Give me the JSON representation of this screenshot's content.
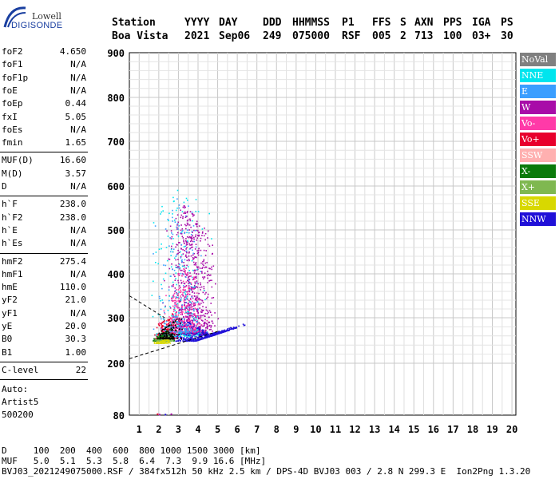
{
  "logo": {
    "line1": "Lowell",
    "line2": "DIGISONDE"
  },
  "header": {
    "station_label": "Station",
    "station_value": "Boa Vista",
    "yyyy_label": "YYYY",
    "yyyy_value": "2021",
    "day_label": "DAY",
    "day_value": "Sep06",
    "ddd_label": "DDD",
    "ddd_value": "249",
    "time_label": "HHMMSS",
    "time_value": "075000",
    "p1_label": "P1",
    "p1_value": "RSF",
    "ffs_label": "FFS",
    "ffs_value": "005",
    "s_label": "S",
    "s_value": "2",
    "axn_label": "AXN",
    "axn_value": "713",
    "pps_label": "PPS",
    "pps_value": "100",
    "iga_label": "IGA",
    "iga_value": "03+",
    "ps_label": "PS",
    "ps_value": "30"
  },
  "params_group1": [
    {
      "k": "foF2",
      "v": "4.650"
    },
    {
      "k": "foF1",
      "v": "N/A"
    },
    {
      "k": "foF1p",
      "v": "N/A"
    },
    {
      "k": "foE",
      "v": "N/A"
    },
    {
      "k": "foEp",
      "v": "0.44"
    },
    {
      "k": "fxI",
      "v": "5.05"
    },
    {
      "k": "foEs",
      "v": "N/A"
    },
    {
      "k": "fmin",
      "v": "1.65"
    }
  ],
  "params_group2": [
    {
      "k": "MUF(D)",
      "v": "16.60"
    },
    {
      "k": "M(D)",
      "v": "3.57"
    },
    {
      "k": "D",
      "v": "N/A"
    }
  ],
  "params_group3": [
    {
      "k": "h`F",
      "v": "238.0"
    },
    {
      "k": "h`F2",
      "v": "238.0"
    },
    {
      "k": "h`E",
      "v": "N/A"
    },
    {
      "k": "h`Es",
      "v": "N/A"
    }
  ],
  "params_group4": [
    {
      "k": "hmF2",
      "v": "275.4"
    },
    {
      "k": "hmF1",
      "v": "N/A"
    },
    {
      "k": "hmE",
      "v": "110.0"
    },
    {
      "k": "yF2",
      "v": "21.0"
    },
    {
      "k": "yF1",
      "v": "N/A"
    },
    {
      "k": "yE",
      "v": "20.0"
    },
    {
      "k": "B0",
      "v": "30.3"
    },
    {
      "k": "B1",
      "v": "1.00"
    }
  ],
  "clevel": {
    "k": "C-level",
    "v": "22"
  },
  "footer_left": {
    "auto": "Auto:",
    "artist": "Artist5",
    "code": "500200"
  },
  "legend": [
    {
      "label": "NoVal",
      "color": "#808080"
    },
    {
      "label": "NNE",
      "color": "#00e5ee"
    },
    {
      "label": "E",
      "color": "#3a9eff"
    },
    {
      "label": "W",
      "color": "#a80ca8"
    },
    {
      "label": "Vo-",
      "color": "#ff3aa8"
    },
    {
      "label": "Vo+",
      "color": "#e8002c"
    },
    {
      "label": "SSW",
      "color": "#ffb0b0"
    },
    {
      "label": "X-",
      "color": "#0b7a0b"
    },
    {
      "label": "X+",
      "color": "#7fb850"
    },
    {
      "label": "SSE",
      "color": "#d8d800"
    },
    {
      "label": "NNW",
      "color": "#2010d8"
    }
  ],
  "bottom": {
    "line1": "D     100  200  400  600  800 1000 1500 3000 [km]",
    "line2": "MUF   5.0  5.1  5.3  5.8  6.4  7.3  9.9 16.6 [MHz]",
    "line3": "BVJ03_2021249075000.RSF / 384fx512h 50 kHz 2.5 km / DPS-4D BVJ03 003 / 2.8 N 299.3 E  Ion2Png 1.3.20"
  },
  "chart_data": {
    "type": "scatter",
    "x_ticks": [
      1,
      2,
      3,
      4,
      5,
      6,
      7,
      8,
      9,
      10,
      11,
      12,
      13,
      14,
      15,
      16,
      17,
      18,
      19,
      20
    ],
    "y_ticks": [
      80,
      200,
      300,
      400,
      500,
      600,
      700,
      800,
      900
    ],
    "xlim": [
      0.5,
      20.2
    ],
    "ylim": [
      80,
      900
    ],
    "grid": true,
    "y_scale": "piecewise",
    "legend_placement": "right",
    "trace_lines": [
      {
        "points": [
          [
            0.5,
            210
          ],
          [
            5.0,
            270
          ]
        ]
      },
      {
        "points": [
          [
            0.5,
            350
          ],
          [
            2.3,
            300
          ]
        ]
      }
    ],
    "clusters": [
      {
        "color": "#a80ca8",
        "x_center": 3.6,
        "x_spread": 1.6,
        "y_min": 265,
        "y_max": 560,
        "count": 900
      },
      {
        "color": "#2010d8",
        "x_center": 4.2,
        "x_spread": 2.6,
        "y_min": 250,
        "y_max": 300,
        "count": 550
      },
      {
        "color": "#e8002c",
        "x_center": 2.4,
        "x_spread": 0.8,
        "y_min": 255,
        "y_max": 330,
        "count": 260
      },
      {
        "color": "#ff3aa8",
        "x_center": 3.2,
        "x_spread": 1.3,
        "y_min": 270,
        "y_max": 420,
        "count": 260
      },
      {
        "color": "#00e5ee",
        "x_center": 3.0,
        "x_spread": 2.0,
        "y_min": 260,
        "y_max": 620,
        "count": 180
      },
      {
        "color": "#3a9eff",
        "x_center": 3.0,
        "x_spread": 1.6,
        "y_min": 270,
        "y_max": 600,
        "count": 160
      },
      {
        "color": "#0b7a0b",
        "x_center": 2.2,
        "x_spread": 0.7,
        "y_min": 250,
        "y_max": 300,
        "count": 120
      },
      {
        "color": "#7fb850",
        "x_center": 2.3,
        "x_spread": 0.7,
        "y_min": 250,
        "y_max": 290,
        "count": 90
      },
      {
        "color": "#d8d800",
        "x_center": 2.2,
        "x_spread": 0.6,
        "y_min": 245,
        "y_max": 280,
        "count": 60
      },
      {
        "color": "#000000",
        "x_center": 2.5,
        "x_spread": 0.8,
        "y_min": 255,
        "y_max": 310,
        "count": 120
      }
    ]
  }
}
